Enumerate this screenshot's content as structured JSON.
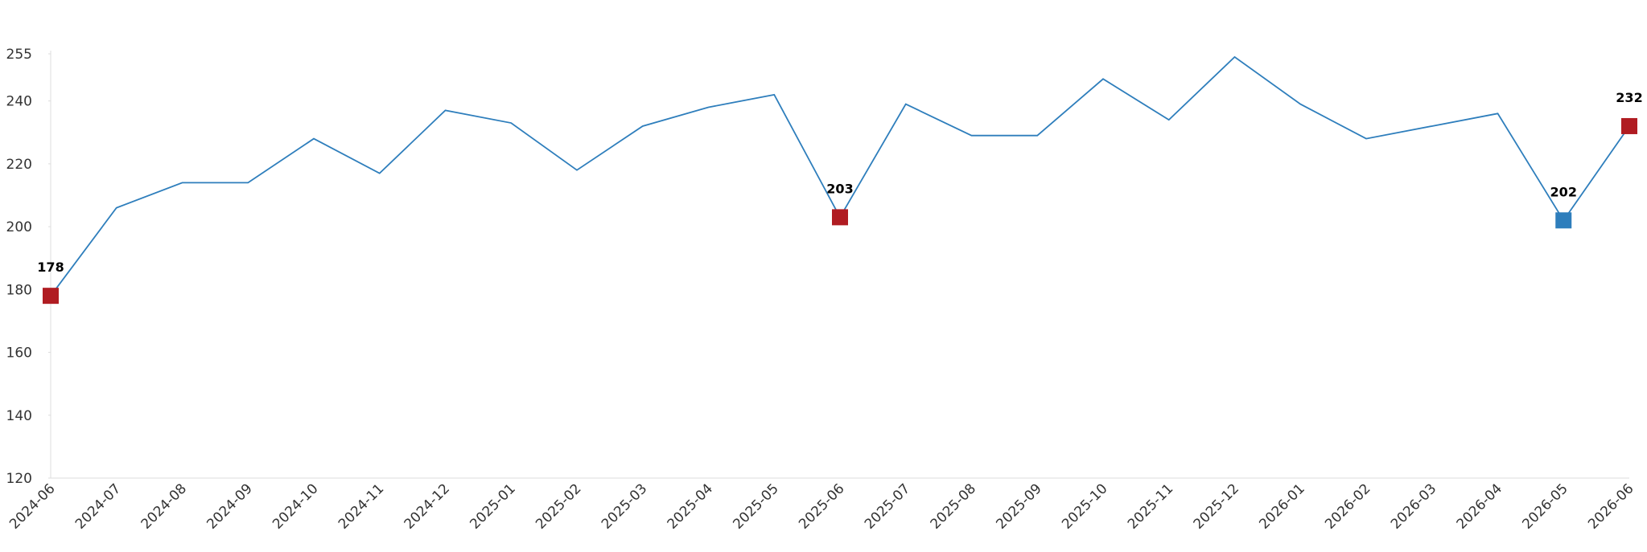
{
  "chart_data": {
    "type": "line",
    "categories": [
      "2024-06",
      "2024-07",
      "2024-08",
      "2024-09",
      "2024-10",
      "2024-11",
      "2024-12",
      "2025-01",
      "2025-02",
      "2025-03",
      "2025-04",
      "2025-05",
      "2025-06",
      "2025-07",
      "2025-08",
      "2025-09",
      "2025-10",
      "2025-11",
      "2025-12",
      "2026-01",
      "2026-02",
      "2026-03",
      "2026-04",
      "2026-05",
      "2026-06"
    ],
    "series": [
      {
        "color": "#2e7ebc",
        "values": [
          178,
          206,
          214,
          214,
          228,
          217,
          237,
          233,
          218,
          232,
          238,
          242,
          203,
          239,
          229,
          229,
          247,
          234,
          254,
          239,
          228,
          232,
          236,
          202,
          232
        ],
        "marker_colors": [
          "#b01c22",
          null,
          null,
          null,
          null,
          null,
          null,
          null,
          null,
          null,
          null,
          null,
          "#b01c22",
          null,
          null,
          null,
          null,
          null,
          null,
          null,
          null,
          null,
          null,
          "#2e7ebc",
          "#b01c22"
        ]
      }
    ],
    "ylim": [
      120,
      255
    ],
    "yticks": [
      120,
      140,
      160,
      180,
      200,
      220,
      240,
      255
    ],
    "grid": false
  }
}
